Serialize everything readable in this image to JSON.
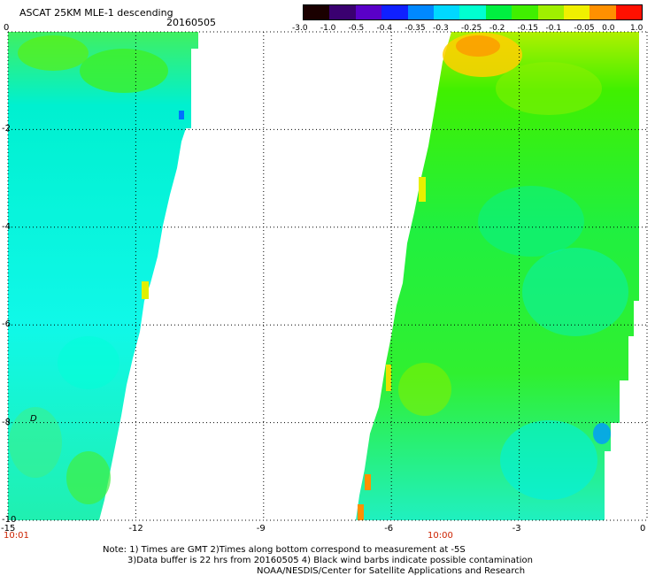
{
  "header": {
    "title": "ASCAT 25KM MLE-1 descending",
    "date": "20160505"
  },
  "colorbar": {
    "labels": [
      "-3.0",
      "-1.0",
      "-0.5",
      "-0.4",
      "-0.35",
      "-0.3",
      "-0.25",
      "-0.2",
      "-0.15",
      "-0.1",
      "-0.05",
      "0.0",
      "1.0"
    ],
    "colors": [
      "#1a0000",
      "#3a0070",
      "#5a00c8",
      "#1020ff",
      "#0088ff",
      "#00d8ff",
      "#00ffd0",
      "#00f040",
      "#40f000",
      "#a0f000",
      "#f0f000",
      "#ff9000",
      "#ff1000"
    ]
  },
  "map": {
    "lon_ticks": [
      "-15",
      "-12",
      "-9",
      "-6",
      "-3",
      "0"
    ],
    "lat_ticks": [
      "0",
      "-2",
      "-4",
      "-6",
      "-8",
      "-10"
    ],
    "time_labels": {
      "left": "10:01",
      "middle": "10:00"
    },
    "marker": "D"
  },
  "footer": {
    "line1": "Note: 1) Times are GMT 2)Times along bottom correspond to measurement at -5S",
    "line2": "3)Data buffer is 22 hrs from 20160505 4) Black wind barbs indicate possible contamination",
    "line3": "NOAA/NESDIS/Center for Satellite Applications and Research"
  }
}
